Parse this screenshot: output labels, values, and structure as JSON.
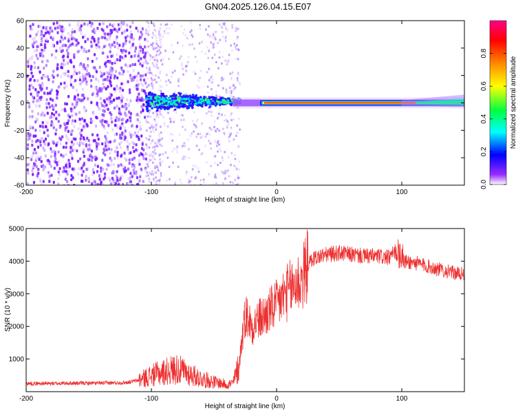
{
  "title": "GN04.2025.126.04.15.E07",
  "chart_data": [
    {
      "type": "heatmap",
      "xlabel": "Height of straight line (km)",
      "ylabel": "Frequency (Hz)",
      "xlim": [
        -200,
        150
      ],
      "ylim": [
        -60,
        60
      ],
      "xticks": [
        -200,
        -100,
        0,
        100
      ],
      "yticks": [
        -60,
        -40,
        -20,
        0,
        20,
        40,
        60
      ],
      "colorbar": {
        "label": "Normalized spectral amplitude",
        "range": [
          0,
          1
        ],
        "ticks": [
          "0.0",
          "0.2",
          "0.4",
          "0.6",
          "0.8"
        ],
        "colors": [
          "#ffffff",
          "#7a00ff",
          "#0000ff",
          "#00ffff",
          "#00ff00",
          "#ffff00",
          "#ff7f00",
          "#ff0000",
          "#ff00aa"
        ]
      },
      "regions": [
        {
          "x": [
            -200,
            -105
          ],
          "desc_freq_spread": [
            -60,
            60
          ],
          "amplitude": 0.15
        },
        {
          "x": [
            -105,
            -30
          ],
          "freq_center": 2,
          "freq_spread": [
            -15,
            12
          ],
          "amplitude_peak": 0.5
        },
        {
          "x": [
            -20,
            150
          ],
          "freq_center": 0,
          "amplitude_peak": 0.95
        }
      ]
    },
    {
      "type": "line",
      "xlabel": "Height of straight line (km)",
      "ylabel": "SNR (10 * v/v)",
      "xlim": [
        -200,
        150
      ],
      "ylim": [
        0,
        5000
      ],
      "xticks": [
        -200,
        -100,
        0,
        100
      ],
      "yticks": [
        1000,
        2000,
        3000,
        4000,
        5000
      ],
      "color": "#ee3030",
      "x": [
        -200,
        -180,
        -160,
        -140,
        -120,
        -110,
        -100,
        -90,
        -80,
        -70,
        -60,
        -50,
        -40,
        -35,
        -30,
        -28,
        -25,
        -22,
        -20,
        -15,
        -10,
        -5,
        0,
        5,
        10,
        15,
        20,
        25,
        30,
        40,
        50,
        60,
        70,
        80,
        90,
        95,
        100,
        110,
        120,
        130,
        140,
        150
      ],
      "y": [
        250,
        250,
        260,
        260,
        280,
        350,
        500,
        600,
        700,
        550,
        400,
        300,
        220,
        250,
        800,
        1500,
        2400,
        2200,
        2000,
        2200,
        2300,
        2500,
        2650,
        2900,
        3100,
        3300,
        3400,
        3900,
        4100,
        4200,
        4250,
        4200,
        4150,
        4150,
        4100,
        4300,
        4000,
        3950,
        3850,
        3750,
        3650,
        3600
      ]
    }
  ]
}
